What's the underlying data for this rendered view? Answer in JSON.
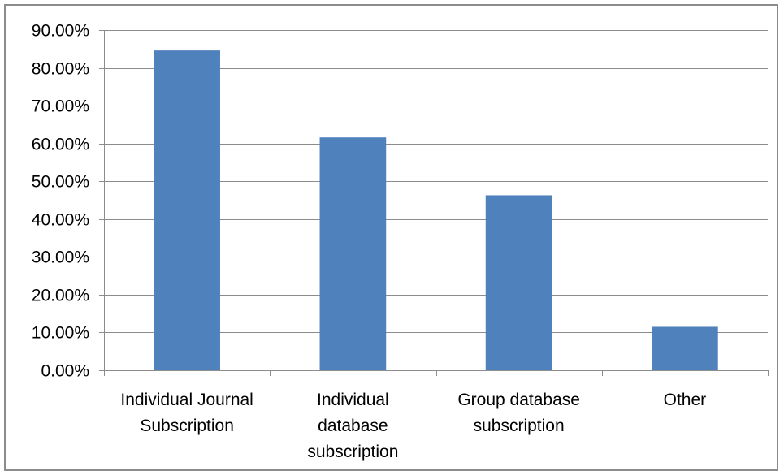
{
  "chart_data": {
    "type": "bar",
    "title": "",
    "xlabel": "",
    "ylabel": "",
    "categories": [
      [
        "Individual Journal",
        "Subscription"
      ],
      [
        "Individual",
        "database",
        "subscription"
      ],
      [
        "Group database",
        "subscription"
      ],
      [
        "Other"
      ]
    ],
    "values": [
      0.846,
      0.616,
      0.463,
      0.115
    ],
    "ylim": [
      0,
      0.9
    ],
    "yticks": [
      0,
      0.1,
      0.2,
      0.3,
      0.4,
      0.5,
      0.6,
      0.7,
      0.8,
      0.9
    ],
    "ytick_labels": [
      "0.00%",
      "10.00%",
      "20.00%",
      "30.00%",
      "40.00%",
      "50.00%",
      "60.00%",
      "70.00%",
      "80.00%",
      "90.00%"
    ],
    "grid": true,
    "legend": "none",
    "colors": {
      "bar": "#4f81bd",
      "grid": "#8c8c8c",
      "axis": "#8c8c8c",
      "frame": "#8c8c8c"
    }
  }
}
